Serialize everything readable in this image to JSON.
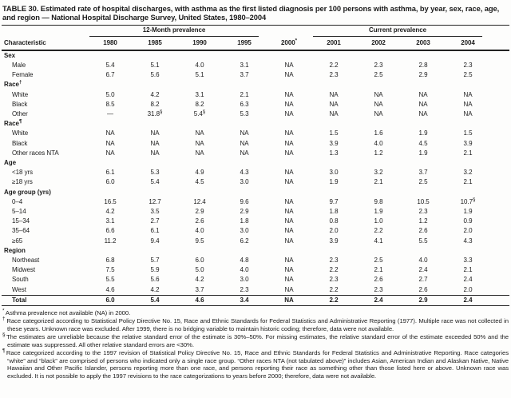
{
  "title": "TABLE 30. Estimated rate of hospital discharges, with asthma as the first listed diagnosis per 100 persons with asthma, by year, sex, race, age, and region — National Hospital Discharge Survey, United States, 1980–2004",
  "table": {
    "col_groups": [
      {
        "label": "12-Month prevalence",
        "span": 4
      },
      {
        "label": "",
        "span": 1
      },
      {
        "label": "Current prevalence",
        "span": 4
      }
    ],
    "columns": [
      "Characteristic",
      "1980",
      "1985",
      "1990",
      "1995",
      "2000*",
      "2001",
      "2002",
      "2003",
      "2004"
    ],
    "rows": [
      {
        "type": "section",
        "label": "Sex",
        "sup": ""
      },
      {
        "type": "item",
        "label": "Male",
        "values": [
          "5.4",
          "5.1",
          "4.0",
          "3.1",
          "NA",
          "2.2",
          "2.3",
          "2.8",
          "2.3"
        ]
      },
      {
        "type": "item",
        "label": "Female",
        "values": [
          "6.7",
          "5.6",
          "5.1",
          "3.7",
          "NA",
          "2.3",
          "2.5",
          "2.9",
          "2.5"
        ]
      },
      {
        "type": "section",
        "label": "Race",
        "sup": "†"
      },
      {
        "type": "item",
        "label": "White",
        "values": [
          "5.0",
          "4.2",
          "3.1",
          "2.1",
          "NA",
          "NA",
          "NA",
          "NA",
          "NA"
        ]
      },
      {
        "type": "item",
        "label": "Black",
        "values": [
          "8.5",
          "8.2",
          "8.2",
          "6.3",
          "NA",
          "NA",
          "NA",
          "NA",
          "NA"
        ]
      },
      {
        "type": "item",
        "label": "Other",
        "values": [
          "—",
          "31.8§",
          "5.4§",
          "5.3",
          "NA",
          "NA",
          "NA",
          "NA",
          "NA"
        ]
      },
      {
        "type": "section",
        "label": "Race",
        "sup": "¶"
      },
      {
        "type": "item",
        "label": "White",
        "values": [
          "NA",
          "NA",
          "NA",
          "NA",
          "NA",
          "1.5",
          "1.6",
          "1.9",
          "1.5"
        ]
      },
      {
        "type": "item",
        "label": "Black",
        "values": [
          "NA",
          "NA",
          "NA",
          "NA",
          "NA",
          "3.9",
          "4.0",
          "4.5",
          "3.9"
        ]
      },
      {
        "type": "item",
        "label": "Other races NTA",
        "values": [
          "NA",
          "NA",
          "NA",
          "NA",
          "NA",
          "1.3",
          "1.2",
          "1.9",
          "2.1"
        ]
      },
      {
        "type": "section",
        "label": "Age",
        "sup": ""
      },
      {
        "type": "item",
        "label": "<18 yrs",
        "values": [
          "6.1",
          "5.3",
          "4.9",
          "4.3",
          "NA",
          "3.0",
          "3.2",
          "3.7",
          "3.2"
        ]
      },
      {
        "type": "item",
        "label": "≥18 yrs",
        "values": [
          "6.0",
          "5.4",
          "4.5",
          "3.0",
          "NA",
          "1.9",
          "2.1",
          "2.5",
          "2.1"
        ]
      },
      {
        "type": "section",
        "label": "Age group (yrs)",
        "sup": ""
      },
      {
        "type": "item",
        "label": "0–4",
        "values": [
          "16.5",
          "12.7",
          "12.4",
          "9.6",
          "NA",
          "9.7",
          "9.8",
          "10.5",
          "10.7§"
        ]
      },
      {
        "type": "item",
        "label": "5–14",
        "values": [
          "4.2",
          "3.5",
          "2.9",
          "2.9",
          "NA",
          "1.8",
          "1.9",
          "2.3",
          "1.9"
        ]
      },
      {
        "type": "item",
        "label": "15–34",
        "values": [
          "3.1",
          "2.7",
          "2.6",
          "1.8",
          "NA",
          "0.8",
          "1.0",
          "1.2",
          "0.9"
        ]
      },
      {
        "type": "item",
        "label": "35–64",
        "values": [
          "6.6",
          "6.1",
          "4.0",
          "3.0",
          "NA",
          "2.0",
          "2.2",
          "2.6",
          "2.0"
        ]
      },
      {
        "type": "item",
        "label": "≥65",
        "values": [
          "11.2",
          "9.4",
          "9.5",
          "6.2",
          "NA",
          "3.9",
          "4.1",
          "5.5",
          "4.3"
        ]
      },
      {
        "type": "section",
        "label": "Region",
        "sup": ""
      },
      {
        "type": "item",
        "label": "Northeast",
        "values": [
          "6.8",
          "5.7",
          "6.0",
          "4.8",
          "NA",
          "2.3",
          "2.5",
          "4.0",
          "3.3"
        ]
      },
      {
        "type": "item",
        "label": "Midwest",
        "values": [
          "7.5",
          "5.9",
          "5.0",
          "4.0",
          "NA",
          "2.2",
          "2.1",
          "2.4",
          "2.1"
        ]
      },
      {
        "type": "item",
        "label": "South",
        "values": [
          "5.5",
          "5.6",
          "4.2",
          "3.0",
          "NA",
          "2.3",
          "2.6",
          "2.7",
          "2.4"
        ]
      },
      {
        "type": "item",
        "label": "West",
        "values": [
          "4.6",
          "4.2",
          "3.7",
          "2.3",
          "NA",
          "2.2",
          "2.3",
          "2.6",
          "2.0"
        ]
      },
      {
        "type": "total",
        "label": "Total",
        "values": [
          "6.0",
          "5.4",
          "4.6",
          "3.4",
          "NA",
          "2.2",
          "2.4",
          "2.9",
          "2.4"
        ]
      }
    ]
  },
  "footnotes": [
    {
      "marker": "*",
      "text": "Asthma prevalence not available (NA) in 2000."
    },
    {
      "marker": "†",
      "text": "Race categorized according to Statistical Policy Directive No. 15, Race and Ethnic Standards for Federal Statistics and Administrative Reporting (1977). Multiple race was not collected in these years. Unknown race was excluded. After 1999, there is no bridging variable to maintain historic coding; therefore, data were not available."
    },
    {
      "marker": "§",
      "text": "The estimates are unreliable because the relative standard error of the estimate is 30%–50%. For missing estimates, the relative standard error of the estimate exceeded 50% and the estimate was suppressed. All other relative standard errors are <30%."
    },
    {
      "marker": "¶",
      "text": "Race categorized according to the 1997 revision of Statistical Policy Directive No. 15, Race and Ethnic Standards for Federal Statistics and Administrative Reporting. Race categories “white” and “black” are comprised of persons who indicated only a single race group. “Other races NTA (not tabulated above)” includes Asian, American Indian and Alaskan Native, Native Hawaiian and Other Pacific Islander, persons reporting more than one race, and persons reporting their race as something other than those listed here or above. Unknown race was excluded. It is not possible to apply the 1997 revisions to the race categorizations to years before 2000; therefore, data were not available."
    }
  ]
}
